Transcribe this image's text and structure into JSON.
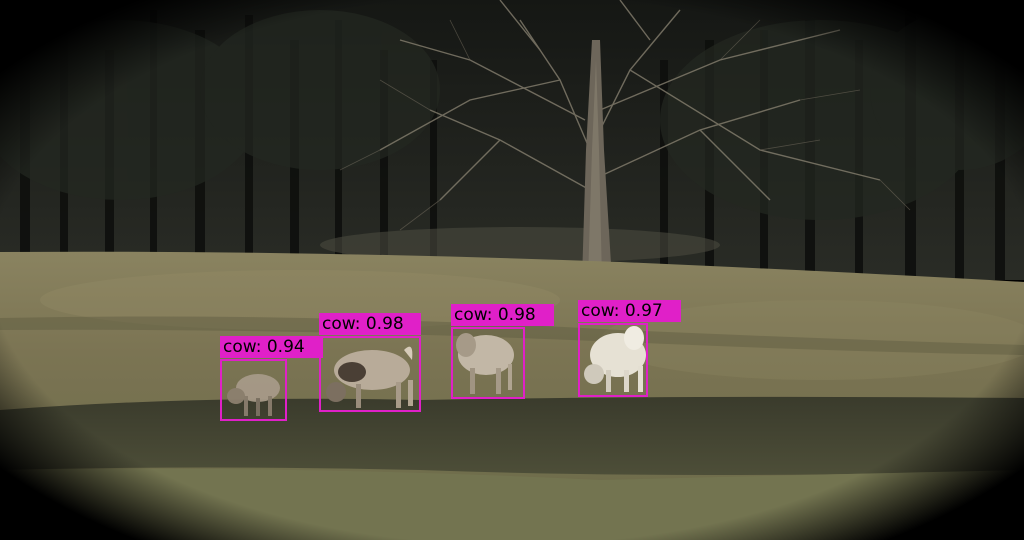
{
  "detections": [
    {
      "label": "cow: 0.94"
    },
    {
      "label": "cow: 0.98"
    },
    {
      "label": "cow: 0.98"
    },
    {
      "label": "cow: 0.97"
    }
  ],
  "colors": {
    "box": "#e020c8",
    "grass": "#6f6a4a",
    "forest": "#1c1e1a"
  }
}
